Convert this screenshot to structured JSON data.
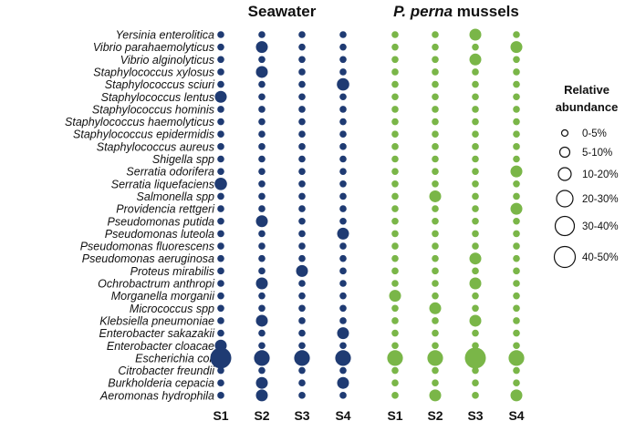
{
  "chart_data": {
    "type": "bubble",
    "panels": [
      {
        "title": "Seawater",
        "title_italic": "",
        "title_rest": "Seawater",
        "color": "#1f3b73",
        "samples": [
          "S1",
          "S2",
          "S3",
          "S4"
        ]
      },
      {
        "title": "P. perna mussels",
        "title_italic": "P. perna",
        "title_rest": " mussels",
        "color": "#7ab648",
        "samples": [
          "S1",
          "S2",
          "S3",
          "S4"
        ]
      }
    ],
    "species": [
      "Yersinia enterolitica",
      "Vibrio parahaemolyticus",
      "Vibrio alginolyticus",
      "Staphylococcus xylosus",
      "Staphylococcus sciuri",
      "Staphylococcus lentus",
      "Staphylococcus hominis",
      "Staphylococcus haemolyticus",
      "Staphylococcus epidermidis",
      "Staphylococcus aureus",
      "Shigella spp",
      "Serratia odorifera",
      "Serratia liquefaciens",
      "Salmonella spp",
      "Providencia rettgeri",
      "Pseudomonas putida",
      "Pseudomonas luteola",
      "Pseudomonas fluorescens",
      "Pseudomonas aeruginosa",
      "Proteus mirabilis",
      "Ochrobactrum anthropi",
      "Morganella morganii",
      "Micrococcus spp",
      "Klebsiella pneumoniae",
      "Enterobacter sakazakii",
      "Enterobacter cloacae",
      "Escherichia coli",
      "Citrobacter freundii",
      "Burkholderia cepacia",
      "Aeromonas hydrophila"
    ],
    "abundance_category_index": {
      "seawater": [
        [
          0,
          0,
          0,
          0
        ],
        [
          0,
          1,
          0,
          0
        ],
        [
          0,
          0,
          0,
          0
        ],
        [
          0,
          1,
          0,
          0
        ],
        [
          0,
          0,
          0,
          2
        ],
        [
          1,
          0,
          0,
          0
        ],
        [
          0,
          0,
          0,
          0
        ],
        [
          0,
          0,
          0,
          0
        ],
        [
          0,
          0,
          0,
          0
        ],
        [
          0,
          0,
          0,
          0
        ],
        [
          0,
          0,
          0,
          0
        ],
        [
          0,
          0,
          0,
          0
        ],
        [
          2,
          0,
          0,
          0
        ],
        [
          0,
          0,
          0,
          0
        ],
        [
          0,
          0,
          0,
          0
        ],
        [
          0,
          1,
          0,
          0
        ],
        [
          0,
          0,
          0,
          1
        ],
        [
          0,
          0,
          0,
          0
        ],
        [
          0,
          0,
          0,
          0
        ],
        [
          0,
          0,
          1,
          0
        ],
        [
          0,
          1,
          0,
          0
        ],
        [
          0,
          0,
          0,
          0
        ],
        [
          0,
          0,
          0,
          0
        ],
        [
          0,
          1,
          0,
          0
        ],
        [
          0,
          0,
          0,
          1
        ],
        [
          1,
          0,
          0,
          0
        ],
        [
          4,
          3,
          3,
          3
        ],
        [
          0,
          0,
          0,
          0
        ],
        [
          0,
          1,
          0,
          1
        ],
        [
          0,
          1,
          0,
          0
        ]
      ],
      "mussels": [
        [
          0,
          0,
          1,
          0
        ],
        [
          0,
          0,
          0,
          1
        ],
        [
          0,
          0,
          1,
          0
        ],
        [
          0,
          0,
          0,
          0
        ],
        [
          0,
          0,
          0,
          0
        ],
        [
          0,
          0,
          0,
          0
        ],
        [
          0,
          0,
          0,
          0
        ],
        [
          0,
          0,
          0,
          0
        ],
        [
          0,
          0,
          0,
          0
        ],
        [
          0,
          0,
          0,
          0
        ],
        [
          0,
          0,
          0,
          0
        ],
        [
          0,
          0,
          0,
          1
        ],
        [
          0,
          0,
          0,
          0
        ],
        [
          0,
          1,
          0,
          0
        ],
        [
          0,
          0,
          0,
          1
        ],
        [
          0,
          0,
          0,
          0
        ],
        [
          0,
          0,
          0,
          0
        ],
        [
          0,
          0,
          0,
          0
        ],
        [
          0,
          0,
          1,
          0
        ],
        [
          0,
          0,
          0,
          0
        ],
        [
          0,
          0,
          1,
          0
        ],
        [
          1,
          0,
          0,
          0
        ],
        [
          0,
          1,
          0,
          0
        ],
        [
          0,
          0,
          1,
          0
        ],
        [
          0,
          0,
          0,
          0
        ],
        [
          0,
          0,
          0,
          0
        ],
        [
          3,
          3,
          4,
          3
        ],
        [
          0,
          0,
          0,
          0
        ],
        [
          0,
          0,
          0,
          0
        ],
        [
          0,
          1,
          0,
          1
        ]
      ]
    },
    "legend": {
      "title_line1": "Relative",
      "title_line2": "abundance",
      "categories": [
        "0-5%",
        "5-10%",
        "10-20%",
        "20-30%",
        "30-40%",
        "40-50%"
      ]
    }
  }
}
